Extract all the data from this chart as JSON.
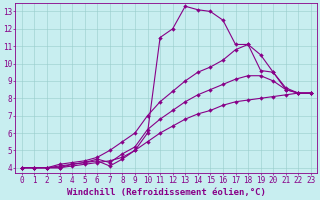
{
  "bg_color": "#c8eef0",
  "line_color": "#880088",
  "grid_color": "#99cccc",
  "spine_color": "#880088",
  "tick_color": "#880088",
  "label_color": "#880088",
  "xlabel": "Windchill (Refroidissement éolien,°C)",
  "xlim": [
    -0.5,
    23.5
  ],
  "ylim": [
    3.7,
    13.5
  ],
  "xticks": [
    0,
    1,
    2,
    3,
    4,
    5,
    6,
    7,
    8,
    9,
    10,
    11,
    12,
    13,
    14,
    15,
    16,
    17,
    18,
    19,
    20,
    21,
    22,
    23
  ],
  "yticks": [
    4,
    5,
    6,
    7,
    8,
    9,
    10,
    11,
    12,
    13
  ],
  "tick_fontsize": 5.5,
  "label_fontsize": 6.5,
  "line1_x": [
    0,
    1,
    2,
    3,
    4,
    5,
    6,
    7,
    8,
    9,
    10,
    11,
    12,
    13,
    14,
    15,
    16,
    17,
    18,
    19,
    20,
    21,
    22,
    23
  ],
  "line1_y": [
    4.0,
    4.0,
    4.0,
    4.0,
    4.2,
    4.3,
    4.4,
    4.1,
    4.5,
    5.0,
    6.0,
    11.5,
    12.0,
    13.3,
    13.1,
    13.0,
    12.5,
    11.1,
    11.1,
    9.6,
    9.5,
    8.5,
    8.3,
    8.3
  ],
  "line2_x": [
    0,
    1,
    2,
    3,
    4,
    5,
    6,
    7,
    8,
    9,
    10,
    11,
    12,
    13,
    14,
    15,
    16,
    17,
    18,
    19,
    20,
    21,
    22,
    23
  ],
  "line2_y": [
    4.0,
    4.0,
    4.0,
    4.2,
    4.3,
    4.4,
    4.6,
    5.0,
    5.5,
    6.0,
    7.0,
    7.8,
    8.4,
    9.0,
    9.5,
    9.8,
    10.2,
    10.8,
    11.1,
    10.5,
    9.5,
    8.6,
    8.3,
    8.3
  ],
  "line3_x": [
    0,
    1,
    2,
    3,
    4,
    5,
    6,
    7,
    8,
    9,
    10,
    11,
    12,
    13,
    14,
    15,
    16,
    17,
    18,
    19,
    20,
    21,
    22,
    23
  ],
  "line3_y": [
    4.0,
    4.0,
    4.0,
    4.1,
    4.2,
    4.3,
    4.5,
    4.3,
    4.8,
    5.2,
    6.2,
    6.8,
    7.3,
    7.8,
    8.2,
    8.5,
    8.8,
    9.1,
    9.3,
    9.3,
    9.0,
    8.5,
    8.3,
    8.3
  ],
  "line4_x": [
    0,
    1,
    2,
    3,
    4,
    5,
    6,
    7,
    8,
    9,
    10,
    11,
    12,
    13,
    14,
    15,
    16,
    17,
    18,
    19,
    20,
    21,
    22,
    23
  ],
  "line4_y": [
    4.0,
    4.0,
    4.0,
    4.0,
    4.1,
    4.2,
    4.3,
    4.4,
    4.6,
    5.0,
    5.5,
    6.0,
    6.4,
    6.8,
    7.1,
    7.3,
    7.6,
    7.8,
    7.9,
    8.0,
    8.1,
    8.2,
    8.3,
    8.3
  ]
}
